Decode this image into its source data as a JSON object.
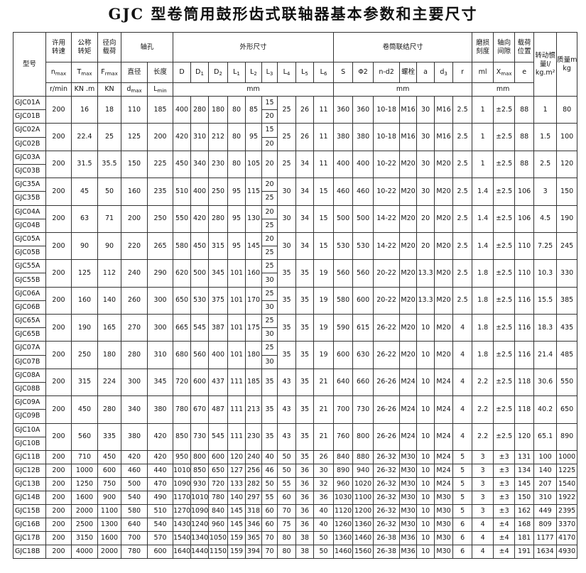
{
  "title": "GJC 型卷筒用鼓形齿式联轴器基本参数和主要尺寸",
  "table": {
    "head1": [
      [
        "型号"
      ],
      [
        "许用",
        "转速"
      ],
      [
        "公称",
        "转矩"
      ],
      [
        "径向",
        "载荷"
      ],
      [
        "轴孔"
      ],
      [
        "外形尺寸"
      ],
      [
        "卷筒联结尺寸"
      ],
      [
        "磨损",
        "刻度"
      ],
      [
        "轴向",
        "间隙"
      ],
      [
        "载荷",
        "位置"
      ],
      [
        "转动惯",
        "量I/",
        "kg.m²"
      ],
      [
        "质量m/",
        "kg"
      ]
    ],
    "head2": [
      {
        "t": "n",
        "sub": "max"
      },
      {
        "t": "T",
        "sub": "max"
      },
      {
        "t": "F",
        "sub": "rmax"
      },
      "直径",
      "长度",
      "D",
      {
        "t": "D",
        "sub": "1"
      },
      {
        "t": "D",
        "sub": "2"
      },
      {
        "t": "L",
        "sub": "1"
      },
      {
        "t": "L",
        "sub": "2"
      },
      {
        "t": "L",
        "sub": "3"
      },
      {
        "t": "L",
        "sub": "4"
      },
      {
        "t": "L",
        "sub": "5"
      },
      {
        "t": "L",
        "sub": "6"
      },
      "S",
      "Φ2",
      "n-d2",
      "螺栓",
      "a",
      {
        "t": "d",
        "sub": "3"
      },
      "r",
      "ml",
      {
        "t": "X",
        "sub": "max"
      },
      "e"
    ],
    "head3": [
      "r/min",
      "KN .m",
      "KN",
      {
        "t": "d",
        "sub": "max"
      },
      {
        "t": "L",
        "sub": "min"
      },
      "mm",
      "mm",
      "mm"
    ],
    "groups": [
      {
        "models": [
          "GJC01A",
          "GJC01B"
        ],
        "cells": [
          "200",
          "16",
          "18",
          "110",
          "185",
          "400",
          "280",
          "180",
          "80",
          "85",
          [
            "15",
            "20"
          ],
          "25",
          "26",
          "11",
          "360",
          "360",
          "10-18",
          "M16",
          "30",
          "M16",
          "2.5",
          "1",
          "±2.5",
          "88",
          "1",
          "80"
        ]
      },
      {
        "models": [
          "GJC02A",
          "GJC02B"
        ],
        "cells": [
          "200",
          "22.4",
          "25",
          "125",
          "200",
          "420",
          "310",
          "212",
          "80",
          "95",
          [
            "15",
            "20"
          ],
          "25",
          "26",
          "11",
          "380",
          "380",
          "10-18",
          "M16",
          "30",
          "M16",
          "2.5",
          "1",
          "±2.5",
          "88",
          "1.5",
          "100"
        ]
      },
      {
        "models": [
          "GJC03A",
          "GJC03B"
        ],
        "cells": [
          "200",
          "31.5",
          "35.5",
          "150",
          "225",
          "450",
          "340",
          "230",
          "80",
          "105",
          "20",
          "25",
          "34",
          "11",
          "400",
          "400",
          "10-22",
          "M20",
          "30",
          "M20",
          "2.5",
          "1",
          "±2.5",
          "88",
          "2.5",
          "120"
        ]
      },
      {
        "models": [
          "GJC35A",
          "GJC35B"
        ],
        "cells": [
          "200",
          "45",
          "50",
          "160",
          "235",
          "510",
          "400",
          "250",
          "95",
          "115",
          [
            "20",
            "25"
          ],
          "30",
          "34",
          "15",
          "460",
          "460",
          "10-22",
          "M20",
          "30",
          "M20",
          "2.5",
          "1.4",
          "±2.5",
          "106",
          "3",
          "150"
        ]
      },
      {
        "models": [
          "GJC04A",
          "GJC04B"
        ],
        "cells": [
          "200",
          "63",
          "71",
          "200",
          "250",
          "550",
          "420",
          "280",
          "95",
          "130",
          [
            "20",
            "25"
          ],
          "30",
          "34",
          "15",
          "500",
          "500",
          "14-22",
          "M20",
          "20",
          "M20",
          "2.5",
          "1.4",
          "±2.5",
          "106",
          "4.5",
          "190"
        ]
      },
      {
        "models": [
          "GJC05A",
          "GJC05B"
        ],
        "cells": [
          "200",
          "90",
          "90",
          "220",
          "265",
          "580",
          "450",
          "315",
          "95",
          "145",
          [
            "20",
            "25"
          ],
          "30",
          "34",
          "15",
          "530",
          "530",
          "14-22",
          "M20",
          "20",
          "M20",
          "2.5",
          "1.4",
          "±2.5",
          "110",
          "7.25",
          "245"
        ]
      },
      {
        "models": [
          "GJC55A",
          "GJC55B"
        ],
        "cells": [
          "200",
          "125",
          "112",
          "240",
          "290",
          "620",
          "500",
          "345",
          "101",
          "160",
          [
            "25",
            "30"
          ],
          "35",
          "35",
          "19",
          "560",
          "560",
          "20-22",
          "M20",
          "13.3",
          "M20",
          "2.5",
          "1.8",
          "±2.5",
          "110",
          "10.3",
          "330"
        ]
      },
      {
        "models": [
          "GJC06A",
          "GJC06B"
        ],
        "cells": [
          "200",
          "160",
          "140",
          "260",
          "300",
          "650",
          "530",
          "375",
          "101",
          "170",
          [
            "25",
            "30"
          ],
          "35",
          "35",
          "19",
          "580",
          "600",
          "20-22",
          "M20",
          "13.3",
          "M20",
          "2.5",
          "1.8",
          "±2.5",
          "116",
          "15.5",
          "385"
        ]
      },
      {
        "models": [
          "GJC65A",
          "GJC65B"
        ],
        "cells": [
          "200",
          "190",
          "165",
          "270",
          "300",
          "665",
          "545",
          "387",
          "101",
          "175",
          [
            "25",
            "30"
          ],
          "35",
          "35",
          "19",
          "590",
          "615",
          "26-22",
          "M20",
          "10",
          "M20",
          "4",
          "1.8",
          "±2.5",
          "116",
          "18.3",
          "435"
        ]
      },
      {
        "models": [
          "GJC07A",
          "GJC07B"
        ],
        "cells": [
          "200",
          "250",
          "180",
          "280",
          "310",
          "680",
          "560",
          "400",
          "101",
          "180",
          [
            "25",
            "30"
          ],
          "35",
          "35",
          "19",
          "600",
          "630",
          "26-22",
          "M20",
          "10",
          "M20",
          "4",
          "1.8",
          "±2.5",
          "116",
          "21.4",
          "485"
        ]
      },
      {
        "models": [
          "GJC08A",
          "GJC08B"
        ],
        "cells": [
          "200",
          "315",
          "224",
          "300",
          "345",
          "720",
          "600",
          "437",
          "111",
          "185",
          "35",
          "43",
          "35",
          "21",
          "640",
          "660",
          "26-26",
          "M24",
          "10",
          "M24",
          "4",
          "2.2",
          "±2.5",
          "118",
          "30.6",
          "550"
        ]
      },
      {
        "models": [
          "GJC09A",
          "GJC09B"
        ],
        "cells": [
          "200",
          "450",
          "280",
          "340",
          "380",
          "780",
          "670",
          "487",
          "111",
          "213",
          "35",
          "43",
          "35",
          "21",
          "700",
          "730",
          "26-26",
          "M24",
          "10",
          "M24",
          "4",
          "2.2",
          "±2.5",
          "118",
          "40.2",
          "650"
        ]
      },
      {
        "models": [
          "GJC10A",
          "GJC10B"
        ],
        "cells": [
          "200",
          "560",
          "335",
          "380",
          "420",
          "850",
          "730",
          "545",
          "111",
          "230",
          "35",
          "43",
          "35",
          "21",
          "760",
          "800",
          "26-26",
          "M24",
          "10",
          "M24",
          "4",
          "2.2",
          "±2.5",
          "120",
          "65.1",
          "890"
        ]
      }
    ],
    "rows": [
      {
        "model": "GJC11B",
        "cells": [
          "200",
          "710",
          "450",
          "420",
          "420",
          "950",
          "800",
          "600",
          "120",
          "240",
          "40",
          "50",
          "35",
          "26",
          "840",
          "880",
          "26-32",
          "M30",
          "10",
          "M24",
          "5",
          "3",
          "±3",
          "131",
          "100",
          "1000"
        ]
      },
      {
        "model": "GJC12B",
        "cells": [
          "200",
          "1000",
          "600",
          "460",
          "440",
          "1010",
          "850",
          "650",
          "127",
          "256",
          "46",
          "50",
          "36",
          "30",
          "890",
          "940",
          "26-32",
          "M30",
          "10",
          "M24",
          "5",
          "3",
          "±3",
          "134",
          "140",
          "1225"
        ]
      },
      {
        "model": "GJC13B",
        "cells": [
          "200",
          "1250",
          "750",
          "500",
          "470",
          "1090",
          "930",
          "720",
          "133",
          "282",
          "50",
          "55",
          "36",
          "32",
          "960",
          "1020",
          "26-32",
          "M30",
          "10",
          "M24",
          "5",
          "3",
          "±3",
          "145",
          "207",
          "1540"
        ]
      },
      {
        "model": "GJC14B",
        "cells": [
          "200",
          "1600",
          "900",
          "540",
          "490",
          "1170",
          "1010",
          "780",
          "140",
          "297",
          "55",
          "60",
          "36",
          "36",
          "1030",
          "1100",
          "26-32",
          "M30",
          "10",
          "M30",
          "5",
          "3",
          "±3",
          "150",
          "310",
          "1922"
        ]
      },
      {
        "model": "GJC15B",
        "cells": [
          "200",
          "2000",
          "1100",
          "580",
          "510",
          "1270",
          "1090",
          "840",
          "145",
          "318",
          "60",
          "70",
          "36",
          "40",
          "1120",
          "1200",
          "26-32",
          "M30",
          "10",
          "M30",
          "5",
          "3",
          "±3",
          "162",
          "449",
          "2395"
        ]
      },
      {
        "model": "GJC16B",
        "cells": [
          "200",
          "2500",
          "1300",
          "640",
          "540",
          "1430",
          "1240",
          "960",
          "145",
          "346",
          "60",
          "75",
          "36",
          "40",
          "1260",
          "1360",
          "26-32",
          "M30",
          "10",
          "M30",
          "6",
          "4",
          "±4",
          "168",
          "809",
          "3370"
        ]
      },
      {
        "model": "GJC17B",
        "cells": [
          "200",
          "3150",
          "1600",
          "700",
          "570",
          "1540",
          "1340",
          "1050",
          "159",
          "365",
          "70",
          "80",
          "38",
          "50",
          "1360",
          "1460",
          "26-38",
          "M36",
          "10",
          "M30",
          "6",
          "4",
          "±4",
          "181",
          "1177",
          "4170"
        ]
      },
      {
        "model": "GJC18B",
        "cells": [
          "200",
          "4000",
          "2000",
          "780",
          "600",
          "1640",
          "1440",
          "1150",
          "159",
          "394",
          "70",
          "80",
          "38",
          "50",
          "1460",
          "1560",
          "26-38",
          "M36",
          "10",
          "M30",
          "6",
          "4",
          "±4",
          "191",
          "1634",
          "4930"
        ]
      }
    ]
  }
}
